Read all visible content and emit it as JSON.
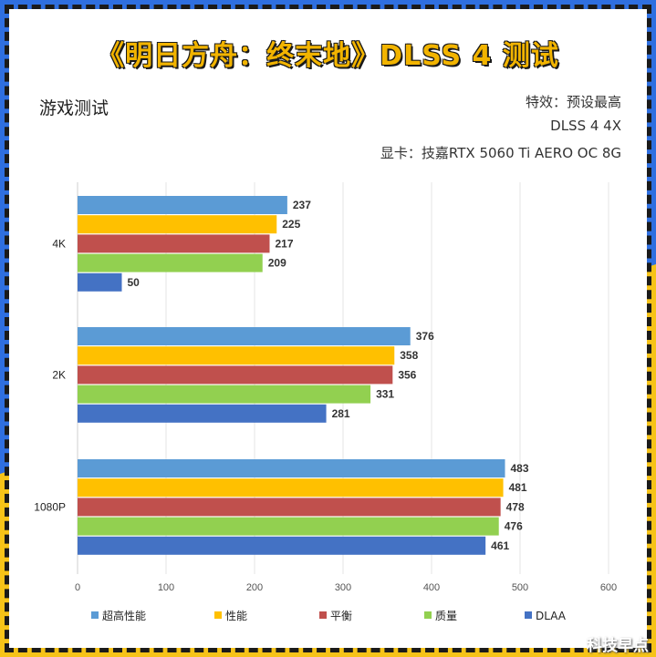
{
  "header": {
    "title": "《明日方舟：终末地》DLSS 4 测试",
    "subtitle": "游戏测试",
    "info_lines": [
      "特效：预设最高",
      "DLSS 4 4X",
      "显卡：技嘉RTX 5060 Ti AERO OC 8G"
    ]
  },
  "watermark": "科技早点",
  "colors": {
    "frame_blue": "#2f6fe0",
    "frame_yellow": "#f6c318"
  },
  "chart_data": {
    "type": "bar",
    "orientation": "horizontal",
    "categories": [
      "4K",
      "2K",
      "1080P"
    ],
    "series": [
      {
        "name": "超高性能",
        "color": "#5b9bd5",
        "values": [
          237,
          376,
          483
        ]
      },
      {
        "name": "性能",
        "color": "#ffc000",
        "values": [
          225,
          358,
          481
        ]
      },
      {
        "name": "平衡",
        "color": "#c0504d",
        "values": [
          217,
          356,
          478
        ]
      },
      {
        "name": "质量",
        "color": "#92d050",
        "values": [
          209,
          331,
          476
        ]
      },
      {
        "name": "DLAA",
        "color": "#4472c4",
        "values": [
          50,
          281,
          461
        ]
      }
    ],
    "xlim": [
      0,
      600
    ],
    "xticks": [
      0,
      100,
      200,
      300,
      400,
      500,
      600
    ],
    "grid": true,
    "legend_position": "bottom"
  }
}
